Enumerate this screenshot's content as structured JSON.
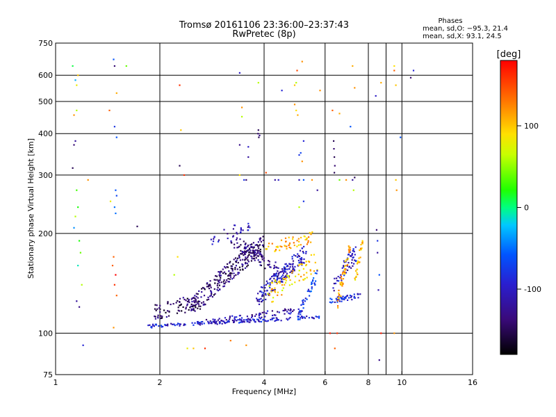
{
  "chart_data": {
    "type": "scatter",
    "title": "Tromsø 20161106 23:36:00–23:37:43",
    "subtitle": "RwPretec (8p)",
    "phase_info": {
      "heading": "Phases",
      "line1": "mean, sd,O: −95.3, 21.4",
      "line2": "mean, sd,X:  93.1, 24.5"
    },
    "xlabel": "Frequency [MHz]",
    "ylabel": "Stationary phase Virtual Height [km]",
    "x_scale": "log",
    "y_scale": "log",
    "xlim": [
      1,
      16
    ],
    "ylim": [
      75,
      750
    ],
    "x_ticks": [
      1,
      2,
      4,
      6,
      8,
      10,
      16
    ],
    "y_ticks": [
      75,
      100,
      200,
      300,
      400,
      500,
      600,
      750
    ],
    "grid": true,
    "colorbar": {
      "label": "[deg]",
      "range": [
        -180,
        180
      ],
      "ticks": [
        100,
        0,
        -100
      ]
    },
    "background_noise": [
      {
        "f": 1.12,
        "h": 640,
        "p": 10
      },
      {
        "f": 1.14,
        "h": 580,
        "p": -30
      },
      {
        "f": 1.15,
        "h": 560,
        "p": 80
      },
      {
        "f": 1.16,
        "h": 600,
        "p": 100
      },
      {
        "f": 1.13,
        "h": 455,
        "p": 120
      },
      {
        "f": 1.15,
        "h": 470,
        "p": 60
      },
      {
        "f": 1.14,
        "h": 380,
        "p": -120
      },
      {
        "f": 1.13,
        "h": 370,
        "p": -140
      },
      {
        "f": 1.12,
        "h": 315,
        "p": -150
      },
      {
        "f": 1.15,
        "h": 270,
        "p": 30
      },
      {
        "f": 1.16,
        "h": 240,
        "p": 20
      },
      {
        "f": 1.14,
        "h": 225,
        "p": 60
      },
      {
        "f": 1.13,
        "h": 208,
        "p": -40
      },
      {
        "f": 1.17,
        "h": 190,
        "p": 20
      },
      {
        "f": 1.18,
        "h": 175,
        "p": 40
      },
      {
        "f": 1.16,
        "h": 160,
        "p": -10
      },
      {
        "f": 1.19,
        "h": 140,
        "p": 60
      },
      {
        "f": 1.15,
        "h": 125,
        "p": -120
      },
      {
        "f": 1.17,
        "h": 120,
        "p": -130
      },
      {
        "f": 1.2,
        "h": 92,
        "p": -90
      },
      {
        "f": 1.24,
        "h": 290,
        "p": 120
      },
      {
        "f": 1.47,
        "h": 670,
        "p": -60
      },
      {
        "f": 1.48,
        "h": 640,
        "p": -140
      },
      {
        "f": 1.6,
        "h": 640,
        "p": 40
      },
      {
        "f": 1.5,
        "h": 530,
        "p": 110
      },
      {
        "f": 1.43,
        "h": 470,
        "p": 140
      },
      {
        "f": 1.48,
        "h": 420,
        "p": -80
      },
      {
        "f": 1.5,
        "h": 390,
        "p": -60
      },
      {
        "f": 1.49,
        "h": 270,
        "p": -60
      },
      {
        "f": 1.5,
        "h": 260,
        "p": -70
      },
      {
        "f": 1.48,
        "h": 240,
        "p": -50
      },
      {
        "f": 1.49,
        "h": 230,
        "p": -50
      },
      {
        "f": 1.47,
        "h": 170,
        "p": 140
      },
      {
        "f": 1.46,
        "h": 160,
        "p": 140
      },
      {
        "f": 1.49,
        "h": 150,
        "p": 180
      },
      {
        "f": 1.48,
        "h": 140,
        "p": 160
      },
      {
        "f": 1.5,
        "h": 130,
        "p": 140
      },
      {
        "f": 1.47,
        "h": 104,
        "p": 120
      },
      {
        "f": 1.44,
        "h": 250,
        "p": 80
      },
      {
        "f": 1.72,
        "h": 210,
        "p": -150
      },
      {
        "f": 2.28,
        "h": 560,
        "p": 160
      },
      {
        "f": 2.3,
        "h": 410,
        "p": 100
      },
      {
        "f": 2.28,
        "h": 320,
        "p": -150
      },
      {
        "f": 2.35,
        "h": 300,
        "p": 160
      },
      {
        "f": 2.25,
        "h": 170,
        "p": 90
      },
      {
        "f": 2.2,
        "h": 150,
        "p": 60
      },
      {
        "f": 2.4,
        "h": 90,
        "p": 80
      },
      {
        "f": 2.5,
        "h": 90,
        "p": 100
      },
      {
        "f": 2.7,
        "h": 90,
        "p": 160
      },
      {
        "f": 3.4,
        "h": 610,
        "p": -100
      },
      {
        "f": 3.45,
        "h": 480,
        "p": 120
      },
      {
        "f": 3.45,
        "h": 450,
        "p": 60
      },
      {
        "f": 3.4,
        "h": 370,
        "p": -130
      },
      {
        "f": 3.4,
        "h": 300,
        "p": 90
      },
      {
        "f": 3.5,
        "h": 290,
        "p": -80
      },
      {
        "f": 3.55,
        "h": 290,
        "p": -140
      },
      {
        "f": 3.6,
        "h": 365,
        "p": -100
      },
      {
        "f": 3.6,
        "h": 340,
        "p": -120
      },
      {
        "f": 3.2,
        "h": 95,
        "p": 130
      },
      {
        "f": 3.55,
        "h": 92,
        "p": 120
      },
      {
        "f": 3.85,
        "h": 570,
        "p": 60
      },
      {
        "f": 3.85,
        "h": 410,
        "p": -150
      },
      {
        "f": 3.84,
        "h": 400,
        "p": -140
      },
      {
        "f": 3.86,
        "h": 390,
        "p": -150
      },
      {
        "f": 3.88,
        "h": 395,
        "p": -130
      },
      {
        "f": 4.05,
        "h": 305,
        "p": 150
      },
      {
        "f": 4.3,
        "h": 290,
        "p": -120
      },
      {
        "f": 4.4,
        "h": 290,
        "p": -100
      },
      {
        "f": 4.5,
        "h": 540,
        "p": -90
      },
      {
        "f": 4.9,
        "h": 560,
        "p": 100
      },
      {
        "f": 4.95,
        "h": 570,
        "p": 60
      },
      {
        "f": 4.98,
        "h": 620,
        "p": 150
      },
      {
        "f": 5.15,
        "h": 660,
        "p": 120
      },
      {
        "f": 4.9,
        "h": 490,
        "p": 120
      },
      {
        "f": 4.95,
        "h": 470,
        "p": 90
      },
      {
        "f": 5.0,
        "h": 455,
        "p": 110
      },
      {
        "f": 5.05,
        "h": 345,
        "p": -80
      },
      {
        "f": 5.1,
        "h": 350,
        "p": -70
      },
      {
        "f": 5.15,
        "h": 330,
        "p": 120
      },
      {
        "f": 5.2,
        "h": 380,
        "p": -90
      },
      {
        "f": 5.05,
        "h": 290,
        "p": -110
      },
      {
        "f": 5.2,
        "h": 290,
        "p": -60
      },
      {
        "f": 5.5,
        "h": 290,
        "p": 120
      },
      {
        "f": 5.7,
        "h": 270,
        "p": -120
      },
      {
        "f": 5.05,
        "h": 240,
        "p": 60
      },
      {
        "f": 5.2,
        "h": 250,
        "p": -80
      },
      {
        "f": 5.8,
        "h": 540,
        "p": 120
      },
      {
        "f": 6.3,
        "h": 470,
        "p": 140
      },
      {
        "f": 6.35,
        "h": 380,
        "p": -150
      },
      {
        "f": 6.36,
        "h": 360,
        "p": -140
      },
      {
        "f": 6.38,
        "h": 340,
        "p": -150
      },
      {
        "f": 6.4,
        "h": 320,
        "p": -140
      },
      {
        "f": 6.38,
        "h": 305,
        "p": -150
      },
      {
        "f": 6.6,
        "h": 290,
        "p": 40
      },
      {
        "f": 6.6,
        "h": 460,
        "p": 110
      },
      {
        "f": 6.9,
        "h": 290,
        "p": 120
      },
      {
        "f": 7.1,
        "h": 420,
        "p": -60
      },
      {
        "f": 7.2,
        "h": 290,
        "p": -120
      },
      {
        "f": 7.3,
        "h": 295,
        "p": -150
      },
      {
        "f": 7.25,
        "h": 270,
        "p": 60
      },
      {
        "f": 7.2,
        "h": 640,
        "p": 110
      },
      {
        "f": 7.3,
        "h": 550,
        "p": 120
      },
      {
        "f": 8.4,
        "h": 520,
        "p": -100
      },
      {
        "f": 8.7,
        "h": 570,
        "p": 110
      },
      {
        "f": 9.5,
        "h": 640,
        "p": 90
      },
      {
        "f": 9.5,
        "h": 620,
        "p": 140
      },
      {
        "f": 9.6,
        "h": 560,
        "p": 100
      },
      {
        "f": 9.9,
        "h": 390,
        "p": -60
      },
      {
        "f": 9.6,
        "h": 290,
        "p": 100
      },
      {
        "f": 9.65,
        "h": 270,
        "p": 120
      },
      {
        "f": 10.6,
        "h": 590,
        "p": -140
      },
      {
        "f": 10.8,
        "h": 620,
        "p": -90
      },
      {
        "f": 8.45,
        "h": 205,
        "p": -140
      },
      {
        "f": 8.5,
        "h": 190,
        "p": -80
      },
      {
        "f": 8.5,
        "h": 175,
        "p": -120
      },
      {
        "f": 8.6,
        "h": 150,
        "p": -60
      },
      {
        "f": 8.55,
        "h": 135,
        "p": -110
      },
      {
        "f": 8.7,
        "h": 100,
        "p": 170
      },
      {
        "f": 8.6,
        "h": 83,
        "p": -130
      },
      {
        "f": 9.5,
        "h": 100,
        "p": 120
      },
      {
        "f": 6.2,
        "h": 100,
        "p": 170
      },
      {
        "f": 6.5,
        "h": 100,
        "p": 160
      },
      {
        "f": 6.4,
        "h": 90,
        "p": 140
      }
    ],
    "echo_traces": [
      {
        "name": "",
        "fmin": 1.85,
        "fmax": 5.8,
        "hstart": 105,
        "hend": 112,
        "phase": -95,
        "n": 170,
        "jitter": 0.012
      },
      {
        "name": "",
        "fmin": 2.7,
        "fmax": 5.2,
        "hstart": 108,
        "hend": 118,
        "phase": -115,
        "n": 70,
        "jitter": 0.02
      },
      {
        "name": "",
        "fmin": 1.9,
        "fmax": 2.6,
        "hstart": 115,
        "hend": 125,
        "phase": -145,
        "n": 90,
        "jitter": 0.055
      },
      {
        "name": "",
        "fmin": 2.5,
        "fmax": 4.0,
        "hstart": 120,
        "hend": 185,
        "phase": -140,
        "n": 240,
        "jitter": 0.07
      },
      {
        "name": "",
        "fmin": 3.2,
        "fmax": 4.6,
        "hstart": 190,
        "hend": 150,
        "phase": -130,
        "n": 90,
        "jitter": 0.05
      },
      {
        "name": "",
        "fmin": 3.8,
        "fmax": 5.3,
        "hstart": 125,
        "hend": 175,
        "phase": -105,
        "n": 150,
        "jitter": 0.06
      },
      {
        "name": "",
        "fmin": 4.0,
        "fmax": 5.6,
        "hstart": 180,
        "hend": 195,
        "phase": 110,
        "n": 55,
        "jitter": 0.04
      },
      {
        "name": "",
        "fmin": 4.1,
        "fmax": 5.7,
        "hstart": 130,
        "hend": 165,
        "phase": 95,
        "n": 70,
        "jitter": 0.07
      },
      {
        "name": "",
        "fmin": 5.0,
        "fmax": 5.7,
        "hstart": 112,
        "hend": 150,
        "phase": -75,
        "n": 45,
        "jitter": 0.04
      },
      {
        "name": "",
        "fmin": 6.2,
        "fmax": 7.6,
        "hstart": 125,
        "hend": 130,
        "phase": -90,
        "n": 50,
        "jitter": 0.018
      },
      {
        "name": "",
        "fmin": 6.3,
        "fmax": 7.4,
        "hstart": 140,
        "hend": 175,
        "phase": -100,
        "n": 55,
        "jitter": 0.06
      },
      {
        "name": "",
        "fmin": 6.5,
        "fmax": 7.1,
        "hstart": 120,
        "hend": 185,
        "phase": 110,
        "n": 50,
        "jitter": 0.06
      },
      {
        "name": "",
        "fmin": 7.3,
        "fmax": 7.7,
        "hstart": 140,
        "hend": 190,
        "phase": 100,
        "n": 25,
        "jitter": 0.05
      },
      {
        "name": "",
        "fmin": 2.8,
        "fmax": 3.7,
        "hstart": 190,
        "hend": 215,
        "phase": -110,
        "n": 30,
        "jitter": 0.04
      }
    ]
  }
}
